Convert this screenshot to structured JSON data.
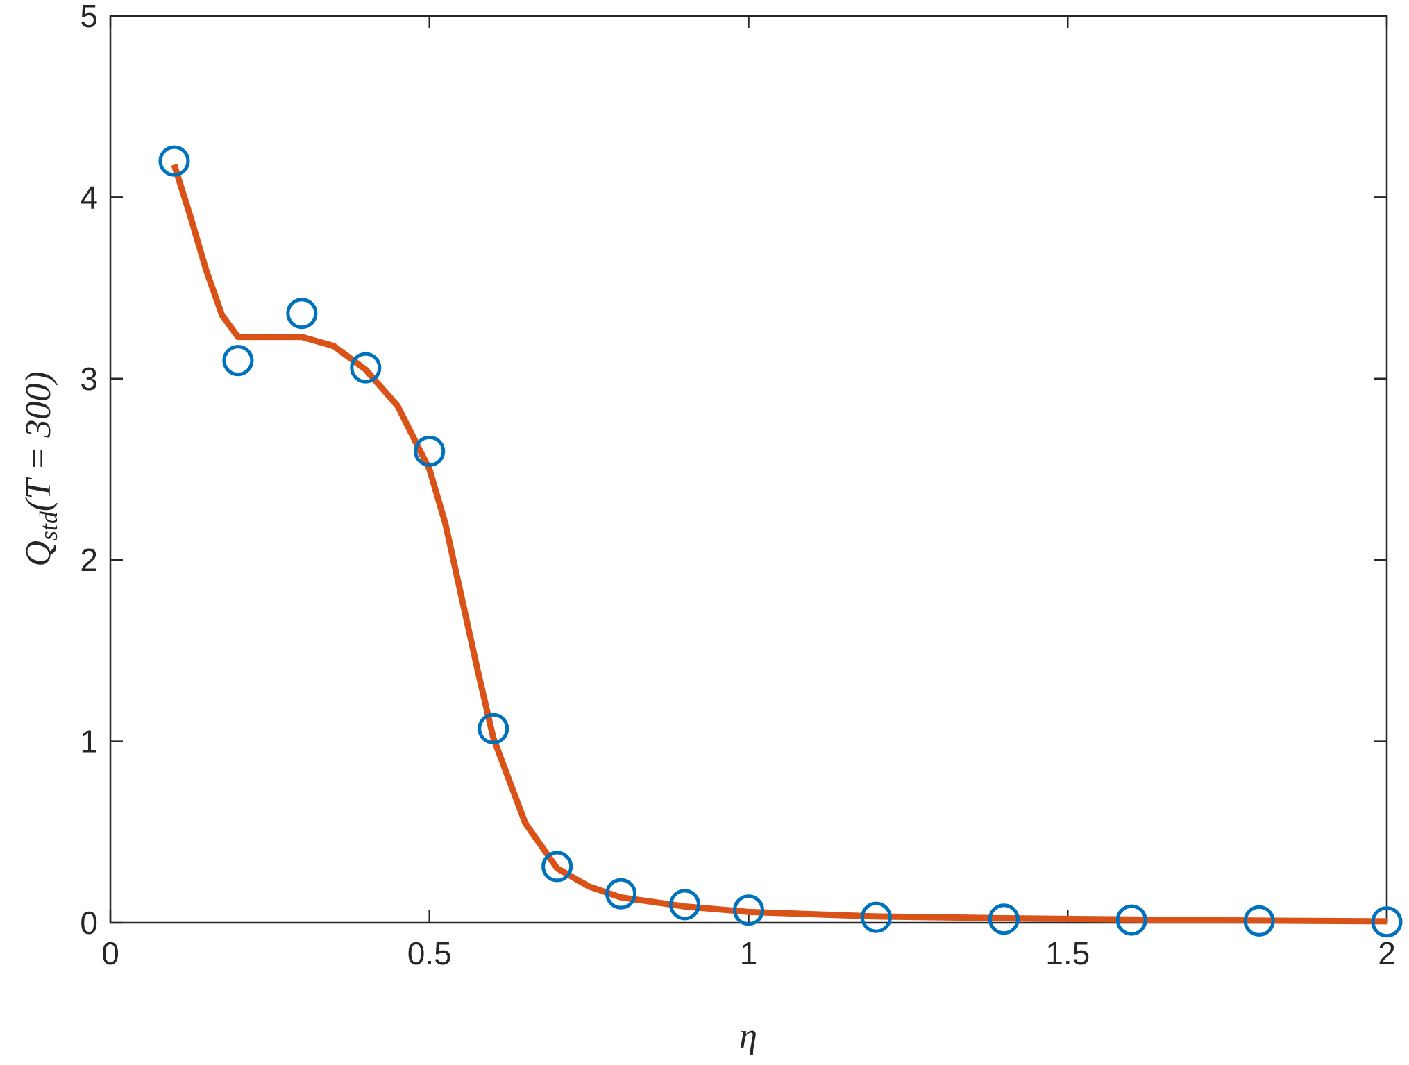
{
  "chart_data": {
    "type": "scatter",
    "xlabel": "η",
    "ylabel": [
      "Q",
      "std",
      "(T = 300)"
    ],
    "xlim": [
      0,
      2
    ],
    "ylim": [
      0,
      5
    ],
    "xticks": [
      0,
      0.5,
      1,
      1.5,
      2
    ],
    "yticks": [
      0,
      1,
      2,
      3,
      4,
      5
    ],
    "points": {
      "color": "#0072bd",
      "x": [
        0.1,
        0.2,
        0.3,
        0.4,
        0.5,
        0.6,
        0.7,
        0.8,
        0.9,
        1.0,
        1.2,
        1.4,
        1.6,
        1.8,
        2.0
      ],
      "values": [
        4.2,
        3.1,
        3.36,
        3.06,
        2.6,
        1.07,
        0.31,
        0.16,
        0.1,
        0.07,
        0.03,
        0.02,
        0.015,
        0.01,
        0.005
      ]
    },
    "fit": {
      "color": "#d95319",
      "x": [
        0.1,
        0.125,
        0.15,
        0.175,
        0.2,
        0.25,
        0.3,
        0.35,
        0.4,
        0.45,
        0.5,
        0.525,
        0.55,
        0.575,
        0.6,
        0.65,
        0.7,
        0.75,
        0.8,
        0.9,
        1.0,
        1.2,
        1.4,
        1.6,
        1.8,
        2.0
      ],
      "values": [
        4.18,
        3.9,
        3.6,
        3.35,
        3.23,
        3.23,
        3.23,
        3.18,
        3.05,
        2.85,
        2.5,
        2.2,
        1.8,
        1.4,
        1.02,
        0.55,
        0.3,
        0.2,
        0.14,
        0.09,
        0.06,
        0.035,
        0.025,
        0.018,
        0.012,
        0.008
      ]
    }
  }
}
